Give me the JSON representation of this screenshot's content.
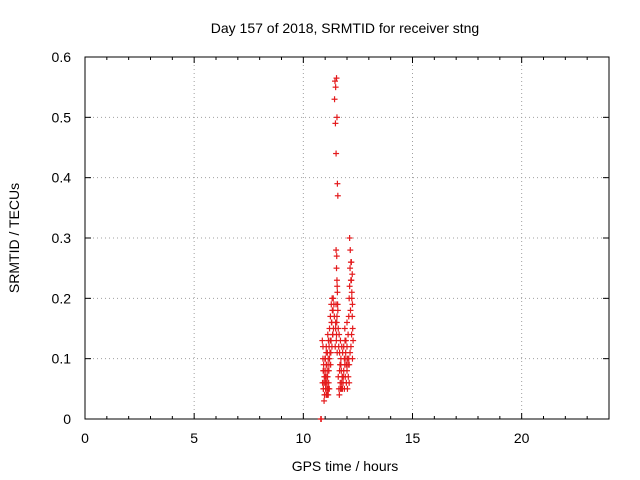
{
  "chart_data": {
    "type": "scatter",
    "title": "Day 157 of 2018, SRMTID for receiver stng",
    "xlabel": "GPS time / hours",
    "ylabel": "SRMTID / TECUs",
    "xlim": [
      0,
      24
    ],
    "ylim": [
      0,
      0.6
    ],
    "x_ticks": [
      0,
      5,
      10,
      15,
      20
    ],
    "x_tick_labels": [
      "0",
      "5",
      "10",
      "15",
      "20"
    ],
    "y_ticks": [
      0,
      0.1,
      0.2,
      0.3,
      0.4,
      0.5,
      0.6
    ],
    "y_tick_labels": [
      "0",
      "0.1",
      "0.2",
      "0.3",
      "0.4",
      "0.5",
      "0.6"
    ],
    "grid": true,
    "marker": "+",
    "series": [
      {
        "name": "SRMTID",
        "color": "#e41a1c",
        "x": [
          10.8,
          10.82,
          10.88,
          10.9,
          10.92,
          10.95,
          10.97,
          11.0,
          11.02,
          11.05,
          11.07,
          11.1,
          11.12,
          11.15,
          10.9,
          10.93,
          10.96,
          10.99,
          11.02,
          11.05,
          11.08,
          11.11,
          11.14,
          11.17,
          10.87,
          10.91,
          10.94,
          10.98,
          11.01,
          11.04,
          11.09,
          11.13,
          10.92,
          10.95,
          11.0,
          11.03,
          11.06,
          11.1,
          11.16,
          11.19,
          11.05,
          11.08,
          11.1,
          11.12,
          11.14,
          11.15,
          11.17,
          11.18,
          11.2,
          11.22,
          11.24,
          11.25,
          11.27,
          11.28,
          11.3,
          11.32,
          11.34,
          11.36,
          11.38,
          11.4,
          11.42,
          11.2,
          11.23,
          11.26,
          11.29,
          11.31,
          11.33,
          11.35,
          11.37,
          11.43,
          11.45,
          11.47,
          11.48,
          11.5,
          11.52,
          11.54,
          11.56,
          11.58,
          11.5,
          11.52,
          11.53,
          11.54,
          11.55,
          11.56,
          11.57,
          11.48,
          11.5,
          11.52,
          11.54,
          11.46,
          11.48,
          11.51,
          11.53,
          11.55,
          11.58,
          11.6,
          11.62,
          11.64,
          11.66,
          11.68,
          11.7,
          11.72,
          11.74,
          11.76,
          11.78,
          11.8,
          11.6,
          11.63,
          11.66,
          11.69,
          11.72,
          11.75,
          11.78,
          11.81,
          11.65,
          11.7,
          11.74,
          11.79,
          11.83,
          11.82,
          11.85,
          11.88,
          11.9,
          11.92,
          11.95,
          11.97,
          12.0,
          12.02,
          12.04,
          12.06,
          12.08,
          12.1,
          11.85,
          11.88,
          11.91,
          11.94,
          11.97,
          12.0,
          12.03,
          11.9,
          11.95,
          12.0,
          12.05,
          12.08,
          12.1,
          12.12,
          12.14,
          12.16,
          12.18,
          12.2,
          12.22,
          12.24,
          12.25,
          12.12,
          12.15,
          12.18,
          12.2,
          12.22,
          12.24,
          12.26,
          12.28,
          12.1,
          12.14,
          12.18,
          12.21,
          12.25
        ],
        "y": [
          0.0,
          0.0,
          0.06,
          0.1,
          0.05,
          0.08,
          0.04,
          0.07,
          0.05,
          0.09,
          0.06,
          0.04,
          0.08,
          0.05,
          0.12,
          0.09,
          0.07,
          0.1,
          0.06,
          0.11,
          0.05,
          0.07,
          0.04,
          0.09,
          0.13,
          0.08,
          0.06,
          0.04,
          0.1,
          0.07,
          0.06,
          0.05,
          0.05,
          0.03,
          0.06,
          0.08,
          0.04,
          0.07,
          0.06,
          0.05,
          0.12,
          0.09,
          0.11,
          0.14,
          0.1,
          0.13,
          0.08,
          0.12,
          0.15,
          0.11,
          0.17,
          0.09,
          0.13,
          0.19,
          0.16,
          0.2,
          0.14,
          0.18,
          0.15,
          0.19,
          0.17,
          0.1,
          0.13,
          0.11,
          0.16,
          0.12,
          0.18,
          0.14,
          0.2,
          0.53,
          0.56,
          0.49,
          0.55,
          0.44,
          0.565,
          0.5,
          0.39,
          0.37,
          0.28,
          0.25,
          0.27,
          0.23,
          0.22,
          0.21,
          0.19,
          0.16,
          0.19,
          0.14,
          0.17,
          0.12,
          0.15,
          0.13,
          0.16,
          0.11,
          0.18,
          0.15,
          0.12,
          0.14,
          0.11,
          0.09,
          0.13,
          0.1,
          0.08,
          0.12,
          0.07,
          0.11,
          0.07,
          0.05,
          0.08,
          0.06,
          0.09,
          0.05,
          0.07,
          0.06,
          0.04,
          0.05,
          0.06,
          0.05,
          0.07,
          0.06,
          0.08,
          0.05,
          0.09,
          0.07,
          0.1,
          0.06,
          0.08,
          0.05,
          0.09,
          0.07,
          0.1,
          0.06,
          0.12,
          0.1,
          0.13,
          0.11,
          0.09,
          0.12,
          0.1,
          0.15,
          0.13,
          0.16,
          0.14,
          0.17,
          0.2,
          0.22,
          0.25,
          0.18,
          0.23,
          0.26,
          0.21,
          0.24,
          0.19,
          0.3,
          0.28,
          0.26,
          0.23,
          0.2,
          0.17,
          0.15,
          0.13,
          0.09,
          0.11,
          0.12,
          0.14,
          0.1
        ]
      }
    ]
  }
}
